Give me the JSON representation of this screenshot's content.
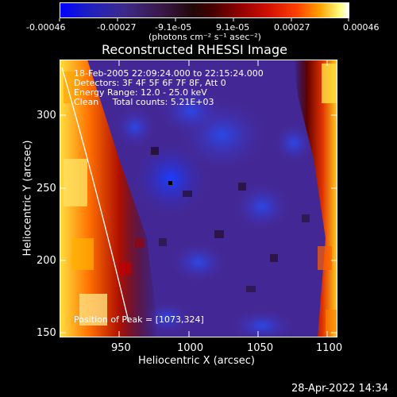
{
  "colorbar": {
    "tick_labels": [
      "-0.00046",
      "-0.00027",
      "-9.1e-05",
      "9.1e-05",
      "0.00027",
      "0.00046"
    ],
    "units": "(photons cm⁻² s⁻¹ asec⁻²)"
  },
  "title": "Reconstructed RHESSI Image",
  "info": {
    "line1": "18-Feb-2005 22:09:24.000 to 22:15:24.000",
    "line2": "Detectors: 3F 4F 5F 6F 7F 8F, Att 0",
    "line3": "Energy Range: 12.0 - 25.0 keV",
    "line4": "Clean     Total counts: 5.21E+03"
  },
  "peak_label": "Position of Peak = [1073,324]",
  "x_axis": {
    "label": "Heliocentric X (arcsec)",
    "ticks": [
      "950",
      "1000",
      "1050",
      "1100"
    ]
  },
  "y_axis": {
    "label": "Heliocentric Y (arcsec)",
    "ticks": [
      "300",
      "250",
      "200",
      "150"
    ]
  },
  "timestamp": "28-Apr-2022 14:34"
}
